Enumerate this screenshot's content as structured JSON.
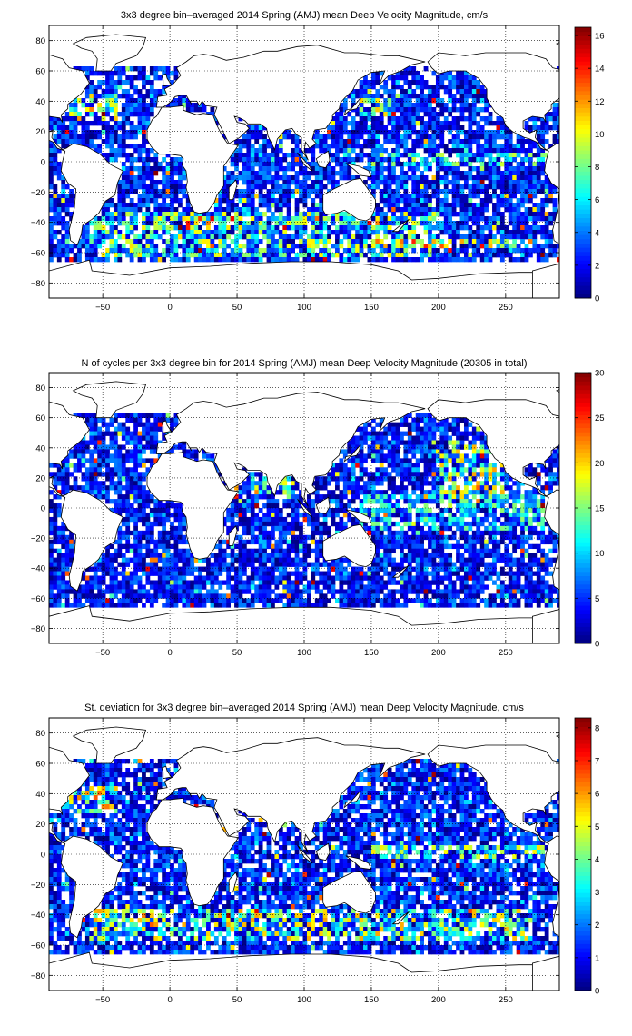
{
  "chart_data": [
    {
      "type": "heatmap",
      "title": "3x3 degree bin–averaged 2014 Spring (AMJ) mean Deep Velocity Magnitude, cm/s",
      "xlim": [
        -90,
        290
      ],
      "ylim": [
        -90,
        90
      ],
      "xticks": [
        -50,
        0,
        50,
        100,
        150,
        200,
        250
      ],
      "yticks": [
        80,
        60,
        40,
        20,
        0,
        -20,
        -40,
        -60,
        -80
      ],
      "grid": true,
      "bin_size_deg": 3,
      "colorbar": {
        "min": 0,
        "max": 16.5,
        "ticks": [
          0,
          2,
          4,
          6,
          8,
          10,
          12,
          14,
          16
        ],
        "colormap": "jet"
      },
      "bands": [
        {
          "lat": [
            -62,
            -34
          ],
          "lon": [
            -60,
            200
          ],
          "value": 9.0
        },
        {
          "lat": [
            -45,
            -36
          ],
          "lon": [
            5,
            45
          ],
          "value": 15.0
        },
        {
          "lat": [
            -58,
            -50
          ],
          "lon": [
            150,
            270
          ],
          "value": 12.0
        },
        {
          "lat": [
            -3,
            6
          ],
          "lon": [
            150,
            280
          ],
          "value": 8.0
        },
        {
          "lat": [
            28,
            45
          ],
          "lon": [
            -75,
            -40
          ],
          "value": 11.0
        },
        {
          "lat": [
            30,
            42
          ],
          "lon": [
            140,
            165
          ],
          "value": 10.0
        }
      ],
      "background_range": [
        0,
        6
      ]
    },
    {
      "type": "heatmap",
      "title": "N of cycles per 3x3 degree bin for 2014 Spring (AMJ) mean Deep Velocity Magnitude (20305 in total)",
      "xlim": [
        -90,
        290
      ],
      "ylim": [
        -90,
        90
      ],
      "xticks": [
        -50,
        0,
        50,
        100,
        150,
        200,
        250
      ],
      "yticks": [
        80,
        60,
        40,
        20,
        0,
        -20,
        -40,
        -60,
        -80
      ],
      "grid": true,
      "bin_size_deg": 3,
      "colorbar": {
        "min": 0,
        "max": 30,
        "ticks": [
          0,
          5,
          10,
          15,
          20,
          25,
          30
        ],
        "colormap": "jet"
      },
      "bands": [
        {
          "lat": [
            5,
            45
          ],
          "lon": [
            200,
            250
          ],
          "value": 18.0
        },
        {
          "lat": [
            10,
            30
          ],
          "lon": [
            60,
            95
          ],
          "value": 16.0
        },
        {
          "lat": [
            -15,
            10
          ],
          "lon": [
            140,
            280
          ],
          "value": 13.0
        }
      ],
      "background_range": [
        0,
        10
      ]
    },
    {
      "type": "heatmap",
      "title": "St. deviation for 3x3 degree bin–averaged 2014 Spring (AMJ) mean Deep Velocity Magnitude, cm/s",
      "xlim": [
        -90,
        290
      ],
      "ylim": [
        -90,
        90
      ],
      "xticks": [
        -50,
        0,
        50,
        100,
        150,
        200,
        250
      ],
      "yticks": [
        80,
        60,
        40,
        20,
        0,
        -20,
        -40,
        -60,
        -80
      ],
      "grid": true,
      "bin_size_deg": 3,
      "colorbar": {
        "min": 0,
        "max": 8.3,
        "ticks": [
          0,
          1,
          2,
          3,
          4,
          5,
          6,
          7,
          8
        ],
        "colormap": "jet"
      },
      "bands": [
        {
          "lat": [
            -58,
            -36
          ],
          "lon": [
            -60,
            270
          ],
          "value": 5.0
        },
        {
          "lat": [
            -3,
            6
          ],
          "lon": [
            150,
            280
          ],
          "value": 4.5
        },
        {
          "lat": [
            28,
            45
          ],
          "lon": [
            -75,
            -40
          ],
          "value": 5.5
        }
      ],
      "background_range": [
        0,
        3
      ]
    }
  ],
  "land": {
    "americas": [
      [
        -168,
        66
      ],
      [
        -160,
        72
      ],
      [
        -140,
        70
      ],
      [
        -125,
        72
      ],
      [
        -95,
        72
      ],
      [
        -80,
        68
      ],
      [
        -75,
        62
      ],
      [
        -65,
        60
      ],
      [
        -60,
        52
      ],
      [
        -66,
        45
      ],
      [
        -70,
        42
      ],
      [
        -76,
        38
      ],
      [
        -76,
        35
      ],
      [
        -81,
        31
      ],
      [
        -80,
        26
      ],
      [
        -82,
        29
      ],
      [
        -90,
        30
      ],
      [
        -97,
        27
      ],
      [
        -97,
        22
      ],
      [
        -92,
        19
      ],
      [
        -87,
        21
      ],
      [
        -88,
        16
      ],
      [
        -84,
        11
      ],
      [
        -80,
        8
      ],
      [
        -77,
        9
      ],
      [
        -72,
        12
      ],
      [
        -62,
        10
      ],
      [
        -52,
        5
      ],
      [
        -44,
        -2
      ],
      [
        -35,
        -6
      ],
      [
        -39,
        -14
      ],
      [
        -41,
        -22
      ],
      [
        -48,
        -26
      ],
      [
        -53,
        -34
      ],
      [
        -58,
        -38
      ],
      [
        -65,
        -42
      ],
      [
        -66,
        -48
      ],
      [
        -69,
        -55
      ],
      [
        -74,
        -52
      ],
      [
        -75,
        -45
      ],
      [
        -73,
        -38
      ],
      [
        -71,
        -30
      ],
      [
        -70,
        -18
      ],
      [
        -76,
        -14
      ],
      [
        -81,
        -6
      ],
      [
        -80,
        0
      ],
      [
        -78,
        7
      ],
      [
        -84,
        9
      ],
      [
        -87,
        13
      ],
      [
        -92,
        15
      ],
      [
        -96,
        16
      ],
      [
        -105,
        20
      ],
      [
        -110,
        24
      ],
      [
        -112,
        29
      ],
      [
        -118,
        33
      ],
      [
        -121,
        37
      ],
      [
        -124,
        42
      ],
      [
        -124,
        48
      ],
      [
        -130,
        55
      ],
      [
        -140,
        60
      ],
      [
        -152,
        60
      ],
      [
        -160,
        58
      ],
      [
        -165,
        62
      ]
    ],
    "greenland": [
      [
        -55,
        60
      ],
      [
        -44,
        60
      ],
      [
        -40,
        65
      ],
      [
        -25,
        70
      ],
      [
        -20,
        76
      ],
      [
        -18,
        82
      ],
      [
        -40,
        84
      ],
      [
        -62,
        82
      ],
      [
        -72,
        78
      ],
      [
        -66,
        75
      ],
      [
        -58,
        73
      ],
      [
        -54,
        68
      ]
    ],
    "eurasia": [
      [
        -10,
        36
      ],
      [
        -9,
        43
      ],
      [
        -2,
        44
      ],
      [
        -4,
        48
      ],
      [
        2,
        51
      ],
      [
        5,
        54
      ],
      [
        8,
        57
      ],
      [
        5,
        62
      ],
      [
        12,
        66
      ],
      [
        18,
        70
      ],
      [
        25,
        71
      ],
      [
        32,
        70
      ],
      [
        42,
        67
      ],
      [
        55,
        69
      ],
      [
        70,
        73
      ],
      [
        80,
        73
      ],
      [
        95,
        76
      ],
      [
        110,
        77
      ],
      [
        130,
        72
      ],
      [
        140,
        72
      ],
      [
        160,
        70
      ],
      [
        170,
        70
      ],
      [
        180,
        68
      ],
      [
        190,
        66
      ],
      [
        180,
        64
      ],
      [
        172,
        60
      ],
      [
        163,
        57
      ],
      [
        156,
        51
      ],
      [
        160,
        60
      ],
      [
        150,
        59
      ],
      [
        140,
        54
      ],
      [
        136,
        47
      ],
      [
        130,
        42
      ],
      [
        127,
        39
      ],
      [
        126,
        35
      ],
      [
        121,
        31
      ],
      [
        121,
        28
      ],
      [
        116,
        22
      ],
      [
        108,
        21
      ],
      [
        106,
        15
      ],
      [
        109,
        12
      ],
      [
        104,
        9
      ],
      [
        101,
        13
      ],
      [
        100,
        7
      ],
      [
        103,
        1
      ],
      [
        98,
        8
      ],
      [
        98,
        16
      ],
      [
        94,
        18
      ],
      [
        91,
        22
      ],
      [
        86,
        21
      ],
      [
        80,
        15
      ],
      [
        78,
        8
      ],
      [
        73,
        17
      ],
      [
        72,
        22
      ],
      [
        67,
        25
      ],
      [
        58,
        25
      ],
      [
        56,
        27
      ],
      [
        52,
        29
      ],
      [
        48,
        30
      ],
      [
        50,
        26
      ],
      [
        56,
        25
      ],
      [
        59,
        22
      ],
      [
        52,
        16
      ],
      [
        44,
        12
      ],
      [
        39,
        21
      ],
      [
        35,
        28
      ],
      [
        33,
        31
      ],
      [
        35,
        36
      ],
      [
        27,
        37
      ],
      [
        24,
        40
      ],
      [
        22,
        37
      ],
      [
        20,
        40
      ],
      [
        15,
        40
      ],
      [
        16,
        38
      ],
      [
        12,
        44
      ],
      [
        9,
        44
      ],
      [
        4,
        43
      ],
      [
        0,
        39
      ],
      [
        -5,
        36
      ]
    ],
    "africa": [
      [
        -17,
        21
      ],
      [
        -17,
        15
      ],
      [
        -14,
        10
      ],
      [
        -8,
        5
      ],
      [
        0,
        5
      ],
      [
        8,
        4
      ],
      [
        10,
        2
      ],
      [
        9,
        -2
      ],
      [
        12,
        -6
      ],
      [
        13,
        -13
      ],
      [
        12,
        -17
      ],
      [
        15,
        -27
      ],
      [
        18,
        -33
      ],
      [
        22,
        -34
      ],
      [
        28,
        -33
      ],
      [
        33,
        -27
      ],
      [
        35,
        -22
      ],
      [
        40,
        -16
      ],
      [
        40,
        -10
      ],
      [
        40,
        -3
      ],
      [
        44,
        2
      ],
      [
        51,
        11
      ],
      [
        43,
        12
      ],
      [
        39,
        17
      ],
      [
        35,
        24
      ],
      [
        32,
        31
      ],
      [
        25,
        32
      ],
      [
        20,
        31
      ],
      [
        10,
        34
      ],
      [
        10,
        37
      ],
      [
        0,
        36
      ],
      [
        -6,
        36
      ],
      [
        -10,
        30
      ],
      [
        -13,
        28
      ]
    ],
    "madagascar": [
      [
        44,
        -25
      ],
      [
        47,
        -25
      ],
      [
        50,
        -15
      ],
      [
        49,
        -12
      ],
      [
        44,
        -17
      ]
    ],
    "arabia_fill": [
      [
        35,
        28
      ],
      [
        39,
        21
      ],
      [
        44,
        12
      ],
      [
        52,
        16
      ],
      [
        59,
        22
      ],
      [
        56,
        25
      ],
      [
        50,
        26
      ],
      [
        48,
        30
      ],
      [
        38,
        32
      ]
    ],
    "australia": [
      [
        114,
        -22
      ],
      [
        122,
        -18
      ],
      [
        129,
        -15
      ],
      [
        136,
        -12
      ],
      [
        142,
        -11
      ],
      [
        145,
        -15
      ],
      [
        153,
        -25
      ],
      [
        153,
        -30
      ],
      [
        150,
        -37
      ],
      [
        146,
        -39
      ],
      [
        140,
        -38
      ],
      [
        135,
        -35
      ],
      [
        130,
        -32
      ],
      [
        124,
        -34
      ],
      [
        116,
        -35
      ],
      [
        114,
        -32
      ]
    ],
    "new_guinea": [
      [
        131,
        -1
      ],
      [
        141,
        -3
      ],
      [
        148,
        -6
      ],
      [
        150,
        -10
      ],
      [
        142,
        -9
      ],
      [
        137,
        -5
      ]
    ],
    "borneo": [
      [
        109,
        2
      ],
      [
        114,
        5
      ],
      [
        118,
        7
      ],
      [
        119,
        1
      ],
      [
        116,
        -4
      ],
      [
        111,
        -3
      ]
    ],
    "sumatra": [
      [
        95,
        6
      ],
      [
        104,
        -3
      ],
      [
        106,
        -6
      ],
      [
        100,
        -2
      ]
    ],
    "japan": [
      [
        130,
        31
      ],
      [
        134,
        34
      ],
      [
        139,
        35
      ],
      [
        141,
        38
      ],
      [
        142,
        42
      ],
      [
        140,
        40
      ],
      [
        135,
        35
      ],
      [
        131,
        34
      ]
    ],
    "nz": [
      [
        166,
        -46
      ],
      [
        173,
        -41
      ],
      [
        178,
        -38
      ],
      [
        175,
        -41
      ],
      [
        170,
        -46
      ]
    ],
    "uk": [
      [
        -5,
        50
      ],
      [
        1,
        51
      ],
      [
        -2,
        55
      ],
      [
        -3,
        58
      ],
      [
        -6,
        57
      ],
      [
        -5,
        54
      ]
    ],
    "antarctica": [
      [
        -90,
        -72
      ],
      [
        -60,
        -65
      ],
      [
        -58,
        -72
      ],
      [
        -30,
        -75
      ],
      [
        0,
        -70
      ],
      [
        30,
        -69
      ],
      [
        60,
        -67
      ],
      [
        90,
        -66
      ],
      [
        120,
        -66
      ],
      [
        150,
        -68
      ],
      [
        170,
        -72
      ],
      [
        180,
        -78
      ],
      [
        200,
        -77
      ],
      [
        230,
        -74
      ],
      [
        260,
        -73
      ],
      [
        290,
        -73
      ],
      [
        290,
        -90
      ],
      [
        -90,
        -90
      ]
    ]
  },
  "colors": {
    "axis": "#000000",
    "grid": "#000000",
    "land_stroke": "#000000"
  }
}
